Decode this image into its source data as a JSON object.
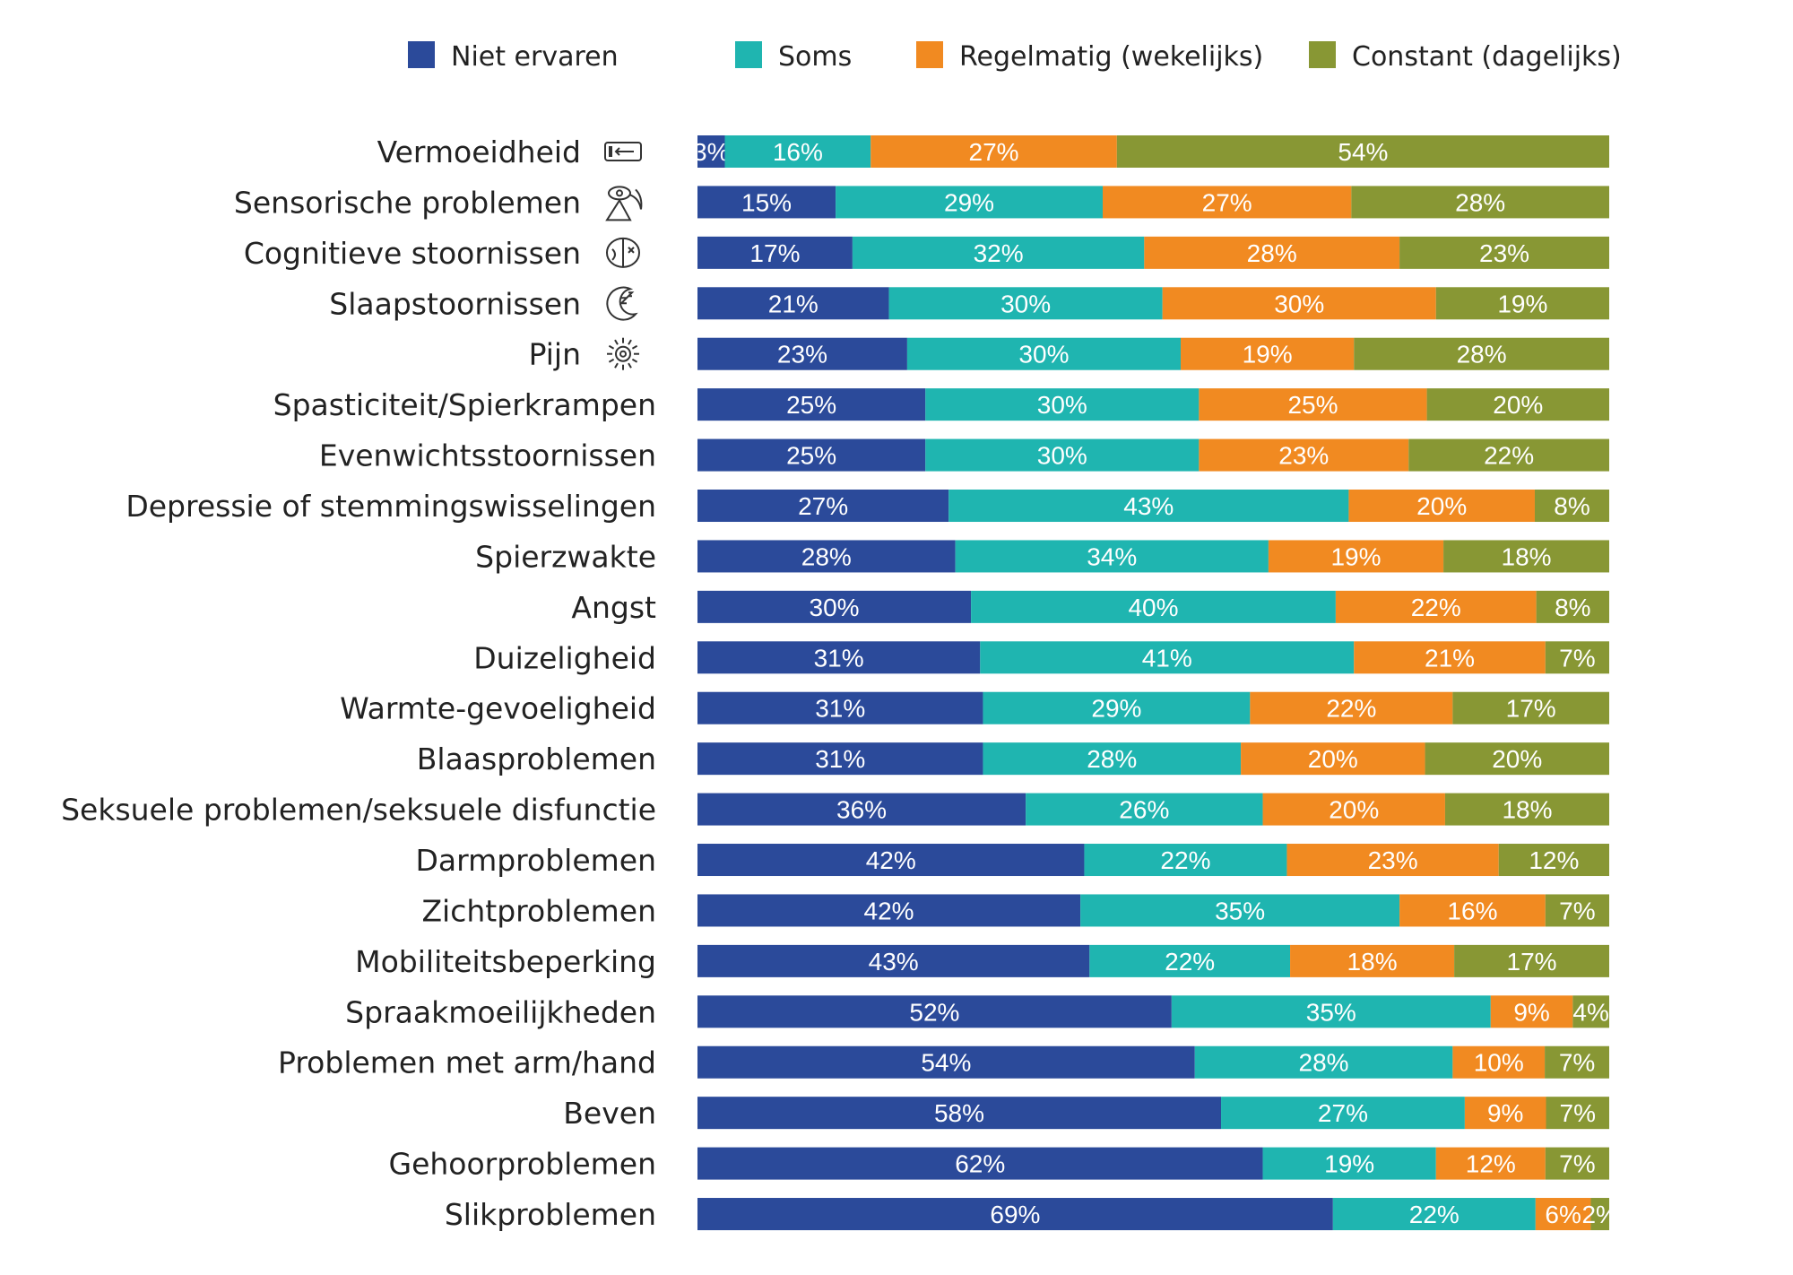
{
  "chart_data": {
    "type": "bar",
    "orientation": "horizontal",
    "stacked": true,
    "percent_stacked": true,
    "legend_position": "top",
    "title": "",
    "xlabel": "",
    "ylabel": "",
    "xlim": [
      0,
      100
    ],
    "categories": [
      "Vermoeidheid",
      "Sensorische problemen",
      "Cognitieve stoornissen",
      "Slaapstoornissen",
      "Pijn",
      "Spasticiteit/Spierkrampen",
      "Evenwichtsstoornissen",
      "Depressie of stemmingswisselingen",
      "Spierzwakte",
      "Angst",
      "Duizeligheid",
      "Warmte-gevoeligheid",
      "Blaasproblemen",
      "Seksuele problemen/seksuele disfunctie",
      "Darmproblemen",
      "Zichtproblemen",
      "Mobiliteitsbeperking",
      "Spraakmoeilijkheden",
      "Problemen met arm/hand",
      "Beven",
      "Gehoorproblemen",
      "Slikproblemen"
    ],
    "category_icons": [
      "battery-icon",
      "senses-icon",
      "brain-icon",
      "sleep-moon-icon",
      "pain-icon"
    ],
    "series": [
      {
        "name": "Niet ervaren",
        "color": "#2b4a9a",
        "values": [
          3,
          15,
          17,
          21,
          23,
          25,
          25,
          27,
          28,
          30,
          31,
          31,
          31,
          36,
          42,
          42,
          43,
          52,
          54,
          58,
          62,
          69
        ]
      },
      {
        "name": "Soms",
        "color": "#1fb5b0",
        "values": [
          16,
          29,
          32,
          30,
          30,
          30,
          30,
          43,
          34,
          40,
          41,
          29,
          28,
          26,
          22,
          35,
          22,
          35,
          28,
          27,
          19,
          22
        ]
      },
      {
        "name": "Regelmatig (wekelijks)",
        "color": "#f18a21",
        "values": [
          27,
          27,
          28,
          30,
          19,
          25,
          23,
          20,
          19,
          22,
          21,
          22,
          20,
          20,
          23,
          16,
          18,
          9,
          10,
          9,
          12,
          6
        ]
      },
      {
        "name": "Constant (dagelijks)",
        "color": "#889734",
        "values": [
          54,
          28,
          23,
          19,
          28,
          20,
          22,
          8,
          18,
          8,
          7,
          17,
          20,
          18,
          12,
          7,
          17,
          4,
          7,
          7,
          7,
          2
        ]
      }
    ],
    "value_suffix": "%"
  }
}
